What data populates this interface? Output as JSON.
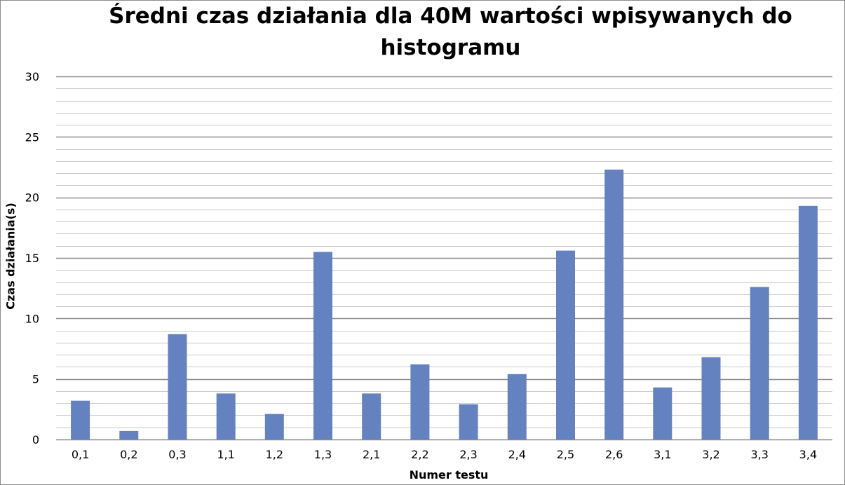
{
  "chart_data": {
    "type": "bar",
    "title_line1": "Średni czas działania dla 40M wartości wpisywanych do",
    "title_line2": "histogramu",
    "xlabel": "Numer testu",
    "ylabel": "Czas działania(s)",
    "categories": [
      "0,1",
      "0,2",
      "0,3",
      "1,1",
      "1,2",
      "1,3",
      "2,1",
      "2,2",
      "2,3",
      "2,4",
      "2,5",
      "2,6",
      "3,1",
      "3,2",
      "3,3",
      "3,4"
    ],
    "values": [
      3.2,
      0.7,
      8.7,
      3.8,
      2.1,
      15.5,
      3.8,
      6.2,
      2.9,
      5.4,
      15.6,
      22.3,
      4.3,
      6.8,
      12.6,
      19.3
    ],
    "ylim": [
      0,
      30
    ],
    "yticks": [
      "0",
      "5",
      "10",
      "15",
      "20",
      "25",
      "30"
    ],
    "bar_color": "#6482bf",
    "grid": true
  }
}
